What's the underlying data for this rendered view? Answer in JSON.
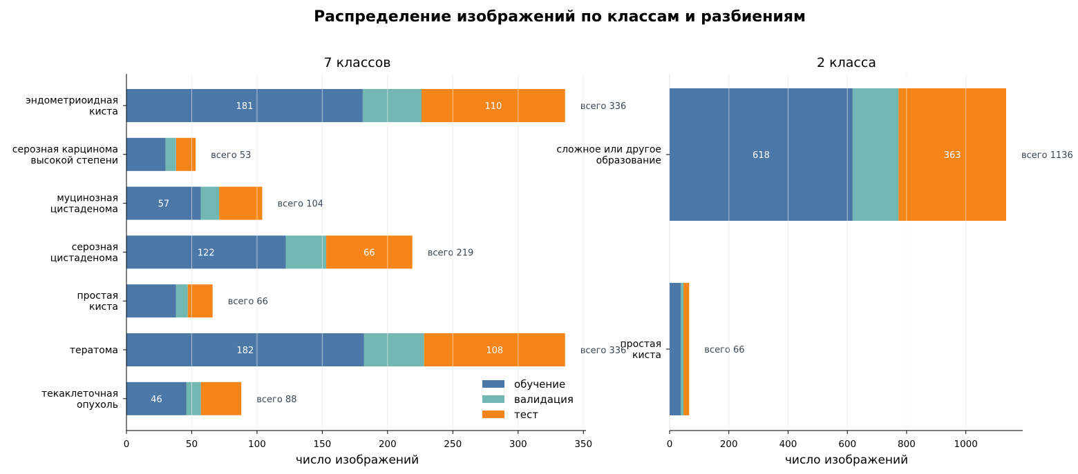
{
  "title": "Распределение изображений по классам и разбиениям",
  "colors": {
    "train": "#4c78a8",
    "val": "#72b7b2",
    "test": "#f58518",
    "total_text": "#3c4654"
  },
  "legend": [
    {
      "key": "train",
      "label": "обучение"
    },
    {
      "key": "val",
      "label": "валидация"
    },
    {
      "key": "test",
      "label": "тест"
    }
  ],
  "total_prefix": "всего",
  "chart_data": [
    {
      "type": "bar",
      "orientation": "horizontal",
      "stacked": true,
      "title": "7 классов",
      "xlabel": "число изображений",
      "xlim": [
        0,
        352
      ],
      "xticks": [
        0,
        50,
        100,
        150,
        200,
        250,
        300,
        350
      ],
      "legend_position": "lower-right",
      "categories": [
        [
          "эндометриоидная",
          "киста"
        ],
        [
          "серозная карцинома",
          "высокой степени"
        ],
        [
          "муцинозная",
          "цистаденома"
        ],
        [
          "серозная",
          "цистаденома"
        ],
        [
          "простая",
          "киста"
        ],
        [
          "тератома"
        ],
        [
          "текаклеточная",
          "опухоль"
        ]
      ],
      "series": [
        {
          "name": "обучение",
          "key": "train",
          "values": [
            181,
            30,
            57,
            122,
            38,
            182,
            46
          ]
        },
        {
          "name": "валидация",
          "key": "val",
          "values": [
            45,
            8,
            14,
            31,
            9,
            46,
            11
          ]
        },
        {
          "name": "тест",
          "key": "test",
          "values": [
            110,
            15,
            33,
            66,
            19,
            108,
            31
          ]
        }
      ],
      "totals": [
        336,
        53,
        104,
        219,
        66,
        336,
        88
      ],
      "segment_labels": {
        "train": [
          181,
          null,
          57,
          122,
          null,
          182,
          46
        ],
        "test": [
          110,
          null,
          null,
          66,
          null,
          108,
          null
        ]
      }
    },
    {
      "type": "bar",
      "orientation": "horizontal",
      "stacked": true,
      "title": "2 класса",
      "xlabel": "число изображений",
      "xlim": [
        0,
        1192
      ],
      "xticks": [
        0,
        200,
        400,
        600,
        800,
        1000
      ],
      "categories": [
        [
          "сложное или другое",
          "образование"
        ],
        [
          "простая",
          "киста"
        ]
      ],
      "series": [
        {
          "name": "обучение",
          "key": "train",
          "values": [
            618,
            38
          ]
        },
        {
          "name": "валидация",
          "key": "val",
          "values": [
            155,
            9
          ]
        },
        {
          "name": "тест",
          "key": "test",
          "values": [
            363,
            19
          ]
        }
      ],
      "totals": [
        1136,
        66
      ],
      "segment_labels": {
        "train": [
          618,
          null
        ],
        "test": [
          363,
          null
        ]
      }
    }
  ]
}
